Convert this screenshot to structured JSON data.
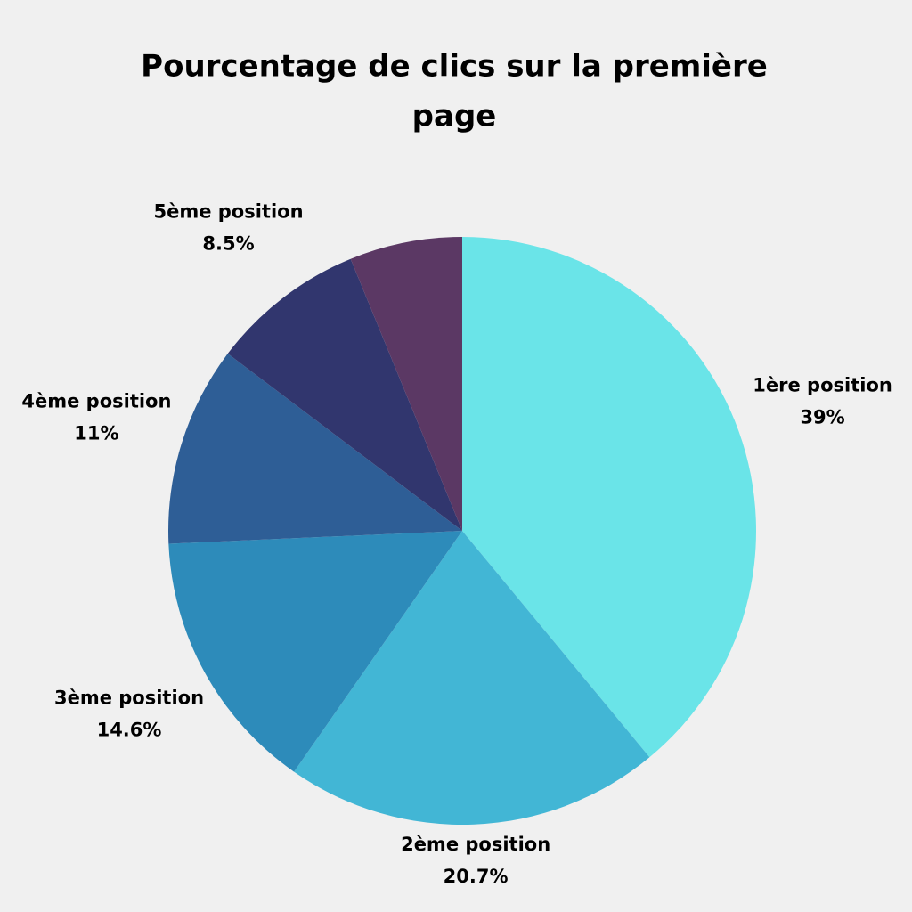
{
  "chart_data": {
    "type": "pie",
    "title": [
      "Pourcentage de clics sur la première",
      "page"
    ],
    "categories": [
      "1ère position",
      "2ème position",
      "3ème position",
      "4ème position",
      "5ème position",
      null
    ],
    "values": [
      39,
      20.7,
      14.6,
      11,
      8.5,
      6.2
    ],
    "value_labels": [
      "39%",
      "20.7%",
      "14.6%",
      "11%",
      "8.5%",
      null
    ],
    "colors": [
      "#6ae4e8",
      "#42b6d5",
      "#2d8bba",
      "#2e5e96",
      "#31366e",
      "#5b3864"
    ]
  }
}
